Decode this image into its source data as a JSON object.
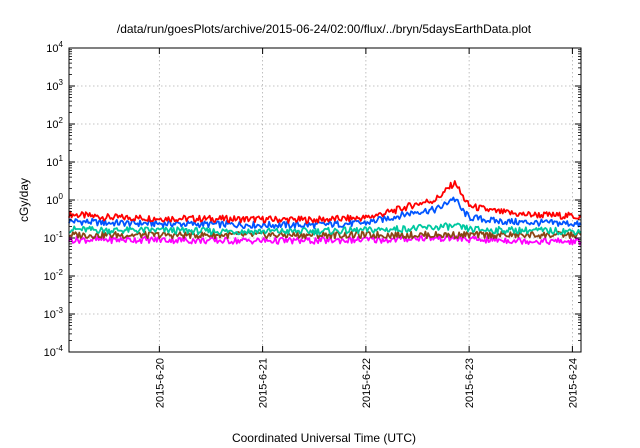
{
  "chart_data": {
    "type": "line",
    "title": "/data/run/goesPlots/archive/2015-06-24/02:00/flux/../bryn/5daysEarthData.plot",
    "xlabel": "Coordinated Universal Time (UTC)",
    "ylabel": "cGy/day",
    "yscale": "log",
    "ylim": [
      0.0001,
      10000
    ],
    "xlim": [
      "2015-06-19T03:00",
      "2015-06-24T02:00"
    ],
    "grid": true,
    "legend": "none",
    "x_ticks": [
      "2015-6-20",
      "2015-6-21",
      "2015-6-22",
      "2015-6-23",
      "2015-6-24"
    ],
    "y_ticks": [
      {
        "value": 0.0001,
        "base": "10",
        "exp": "-4"
      },
      {
        "value": 0.001,
        "base": "10",
        "exp": "-3"
      },
      {
        "value": 0.01,
        "base": "10",
        "exp": "-2"
      },
      {
        "value": 0.1,
        "base": "10",
        "exp": "-1"
      },
      {
        "value": 1,
        "base": "10",
        "exp": "0"
      },
      {
        "value": 10,
        "base": "10",
        "exp": "1"
      },
      {
        "value": 100,
        "base": "10",
        "exp": "2"
      },
      {
        "value": 1000,
        "base": "10",
        "exp": "3"
      },
      {
        "value": 10000,
        "base": "10",
        "exp": "4"
      }
    ],
    "x": [
      "2015-06-19T03:00",
      "2015-06-19T12:00",
      "2015-06-20T00:00",
      "2015-06-20T12:00",
      "2015-06-21T00:00",
      "2015-06-21T12:00",
      "2015-06-22T00:00",
      "2015-06-22T06:00",
      "2015-06-22T12:00",
      "2015-06-22T16:00",
      "2015-06-22T18:00",
      "2015-06-22T20:00",
      "2015-06-22T21:00",
      "2015-06-22T22:00",
      "2015-06-23T00:00",
      "2015-06-23T06:00",
      "2015-06-23T12:00",
      "2015-06-24T00:00",
      "2015-06-24T02:00"
    ],
    "series": [
      {
        "color": "#ff0000",
        "values": [
          0.42,
          0.35,
          0.33,
          0.32,
          0.31,
          0.3,
          0.34,
          0.5,
          0.8,
          1.0,
          1.5,
          2.5,
          2.8,
          1.5,
          0.7,
          0.5,
          0.42,
          0.38,
          0.35
        ]
      },
      {
        "color": "#0055ff",
        "values": [
          0.28,
          0.25,
          0.24,
          0.23,
          0.22,
          0.22,
          0.25,
          0.35,
          0.5,
          0.55,
          0.7,
          1.1,
          1.0,
          0.6,
          0.35,
          0.28,
          0.26,
          0.24,
          0.22
        ]
      },
      {
        "color": "#00c8a0",
        "values": [
          0.17,
          0.16,
          0.16,
          0.15,
          0.15,
          0.15,
          0.16,
          0.17,
          0.18,
          0.19,
          0.2,
          0.2,
          0.2,
          0.19,
          0.17,
          0.16,
          0.16,
          0.15,
          0.15
        ]
      },
      {
        "color": "#8b4513",
        "values": [
          0.12,
          0.12,
          0.12,
          0.12,
          0.12,
          0.12,
          0.12,
          0.12,
          0.12,
          0.12,
          0.12,
          0.12,
          0.12,
          0.12,
          0.12,
          0.12,
          0.12,
          0.12,
          0.12
        ]
      },
      {
        "color": "#ff00ff",
        "values": [
          0.09,
          0.09,
          0.09,
          0.085,
          0.085,
          0.085,
          0.09,
          0.09,
          0.1,
          0.1,
          0.1,
          0.1,
          0.1,
          0.095,
          0.09,
          0.09,
          0.085,
          0.08,
          0.08
        ]
      }
    ]
  }
}
